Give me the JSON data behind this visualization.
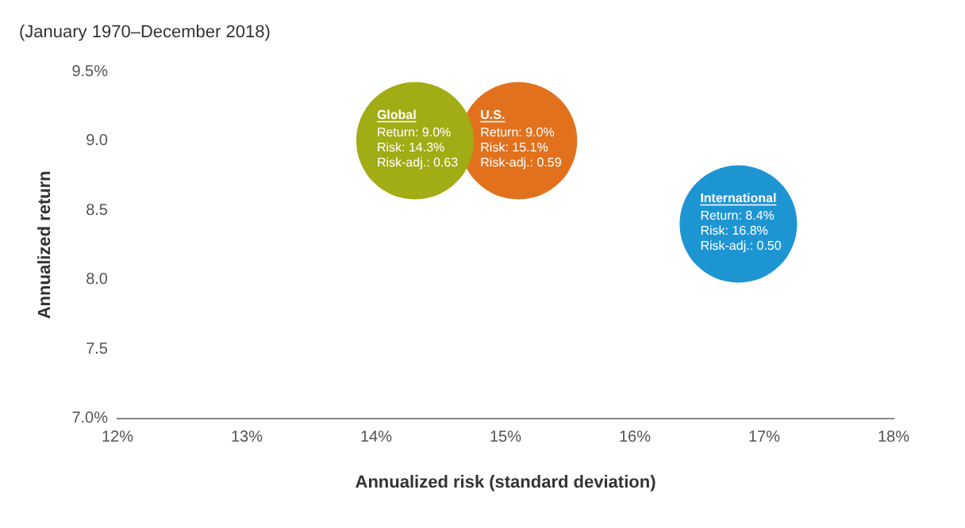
{
  "chart_data": {
    "type": "bubble",
    "title": "(January 1970–December 2018)",
    "xlabel": "Annualized risk (standard deviation)",
    "ylabel": "Annualized return",
    "series": [
      {
        "name": "Global",
        "color": "#a2ac14",
        "x": [
          14.3
        ],
        "values": [
          9.0
        ],
        "sizes": [
          1
        ]
      },
      {
        "name": "U.S.",
        "color": "#e2711d",
        "x": [
          15.1
        ],
        "values": [
          9.0
        ],
        "sizes": [
          1
        ]
      },
      {
        "name": "International",
        "color": "#1e95d3",
        "x": [
          16.8
        ],
        "values": [
          8.4
        ],
        "sizes": [
          1
        ]
      }
    ],
    "annotations": [
      {
        "text": "Return: 9.0%\nRisk: 14.3%\nRisk-adj.: 0.63",
        "x": 14.3,
        "y": 9.0
      },
      {
        "text": "Return: 9.0%\nRisk: 15.1%\nRisk-adj.: 0.59",
        "x": 15.1,
        "y": 9.0
      },
      {
        "text": "Return: 8.4%\nRisk: 16.8%\nRisk-adj.: 0.50",
        "x": 16.8,
        "y": 8.4
      }
    ],
    "xlim": [
      12,
      18
    ],
    "ylim": [
      7,
      9.5
    ],
    "xticks": [
      {
        "value": 12,
        "label": "12%"
      },
      {
        "value": 13,
        "label": "13%"
      },
      {
        "value": 14,
        "label": "14%"
      },
      {
        "value": 15,
        "label": "15%"
      },
      {
        "value": 16,
        "label": "16%"
      },
      {
        "value": 17,
        "label": "17%"
      },
      {
        "value": 18,
        "label": "18%"
      }
    ],
    "yticks": [
      {
        "value": 7,
        "label": "7.0%"
      },
      {
        "value": 7.5,
        "label": "7.5"
      },
      {
        "value": 8,
        "label": "8.0"
      },
      {
        "value": 8.5,
        "label": "8.5"
      },
      {
        "value": 9,
        "label": "9.0"
      },
      {
        "value": 9.5,
        "label": "9.5%"
      }
    ],
    "grid": false,
    "legend": false
  }
}
